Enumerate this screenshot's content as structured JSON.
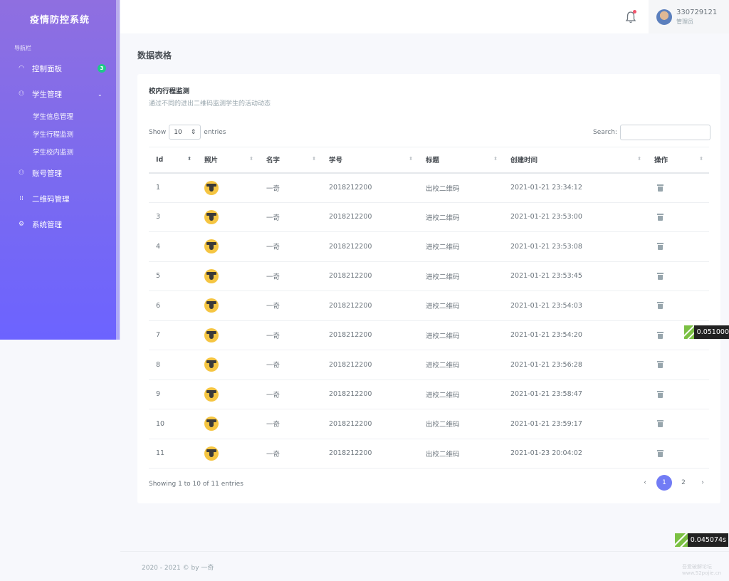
{
  "sidebar": {
    "brand": "疫情防控系统",
    "caption": "导航栏",
    "dashboard": {
      "label": "控制面板",
      "badge": "3"
    },
    "student_mgmt": {
      "label": "学生管理",
      "chevron": "⌄"
    },
    "sub_items": [
      "学生信息管理",
      "学生行程监测",
      "学生校内监测"
    ],
    "account_mgmt": "账号管理",
    "qr_mgmt": "二维码管理",
    "system_mgmt": "系统管理"
  },
  "topbar": {
    "user_name": "330729121",
    "user_role": "管理员"
  },
  "page_title": "数据表格",
  "card": {
    "title": "校内行程监测",
    "subtitle": "通过不同的进出二维码监测学生的活动动态",
    "show_label": "Show",
    "page_size": "10",
    "entries_label": "entries",
    "search_label": "Search:",
    "columns": [
      "Id",
      "照片",
      "名字",
      "学号",
      "标题",
      "创建时间",
      "操作"
    ],
    "rows": [
      {
        "id": "1",
        "name": "一奇",
        "student_no": "2018212200",
        "title": "出校二维码",
        "created": "2021-01-21 23:34:12"
      },
      {
        "id": "3",
        "name": "一奇",
        "student_no": "2018212200",
        "title": "进校二维码",
        "created": "2021-01-21 23:53:00"
      },
      {
        "id": "4",
        "name": "一奇",
        "student_no": "2018212200",
        "title": "进校二维码",
        "created": "2021-01-21 23:53:08"
      },
      {
        "id": "5",
        "name": "一奇",
        "student_no": "2018212200",
        "title": "进校二维码",
        "created": "2021-01-21 23:53:45"
      },
      {
        "id": "6",
        "name": "一奇",
        "student_no": "2018212200",
        "title": "进校二维码",
        "created": "2021-01-21 23:54:03"
      },
      {
        "id": "7",
        "name": "一奇",
        "student_no": "2018212200",
        "title": "进校二维码",
        "created": "2021-01-21 23:54:20"
      },
      {
        "id": "8",
        "name": "一奇",
        "student_no": "2018212200",
        "title": "进校二维码",
        "created": "2021-01-21 23:56:28"
      },
      {
        "id": "9",
        "name": "一奇",
        "student_no": "2018212200",
        "title": "进校二维码",
        "created": "2021-01-21 23:58:47"
      },
      {
        "id": "10",
        "name": "一奇",
        "student_no": "2018212200",
        "title": "出校二维码",
        "created": "2021-01-21 23:59:17"
      },
      {
        "id": "11",
        "name": "一奇",
        "student_no": "2018212200",
        "title": "出校二维码",
        "created": "2021-01-23 20:04:02"
      }
    ],
    "info": "Showing 1 to 10 of 11 entries",
    "pager": {
      "prev": "‹",
      "pages": [
        "1",
        "2"
      ],
      "next": "›"
    }
  },
  "footer": "2020 - 2021 © by 一奇",
  "timers": [
    "0.051000",
    "0.045074s"
  ],
  "watermark": [
    "吾爱破解论坛",
    "www.52pojie.cn"
  ],
  "colors": {
    "accent": "#727cf5",
    "badge": "#1fc88a",
    "sidebar_top": "#8f6fe0",
    "sidebar_bottom": "#6c63ff"
  }
}
